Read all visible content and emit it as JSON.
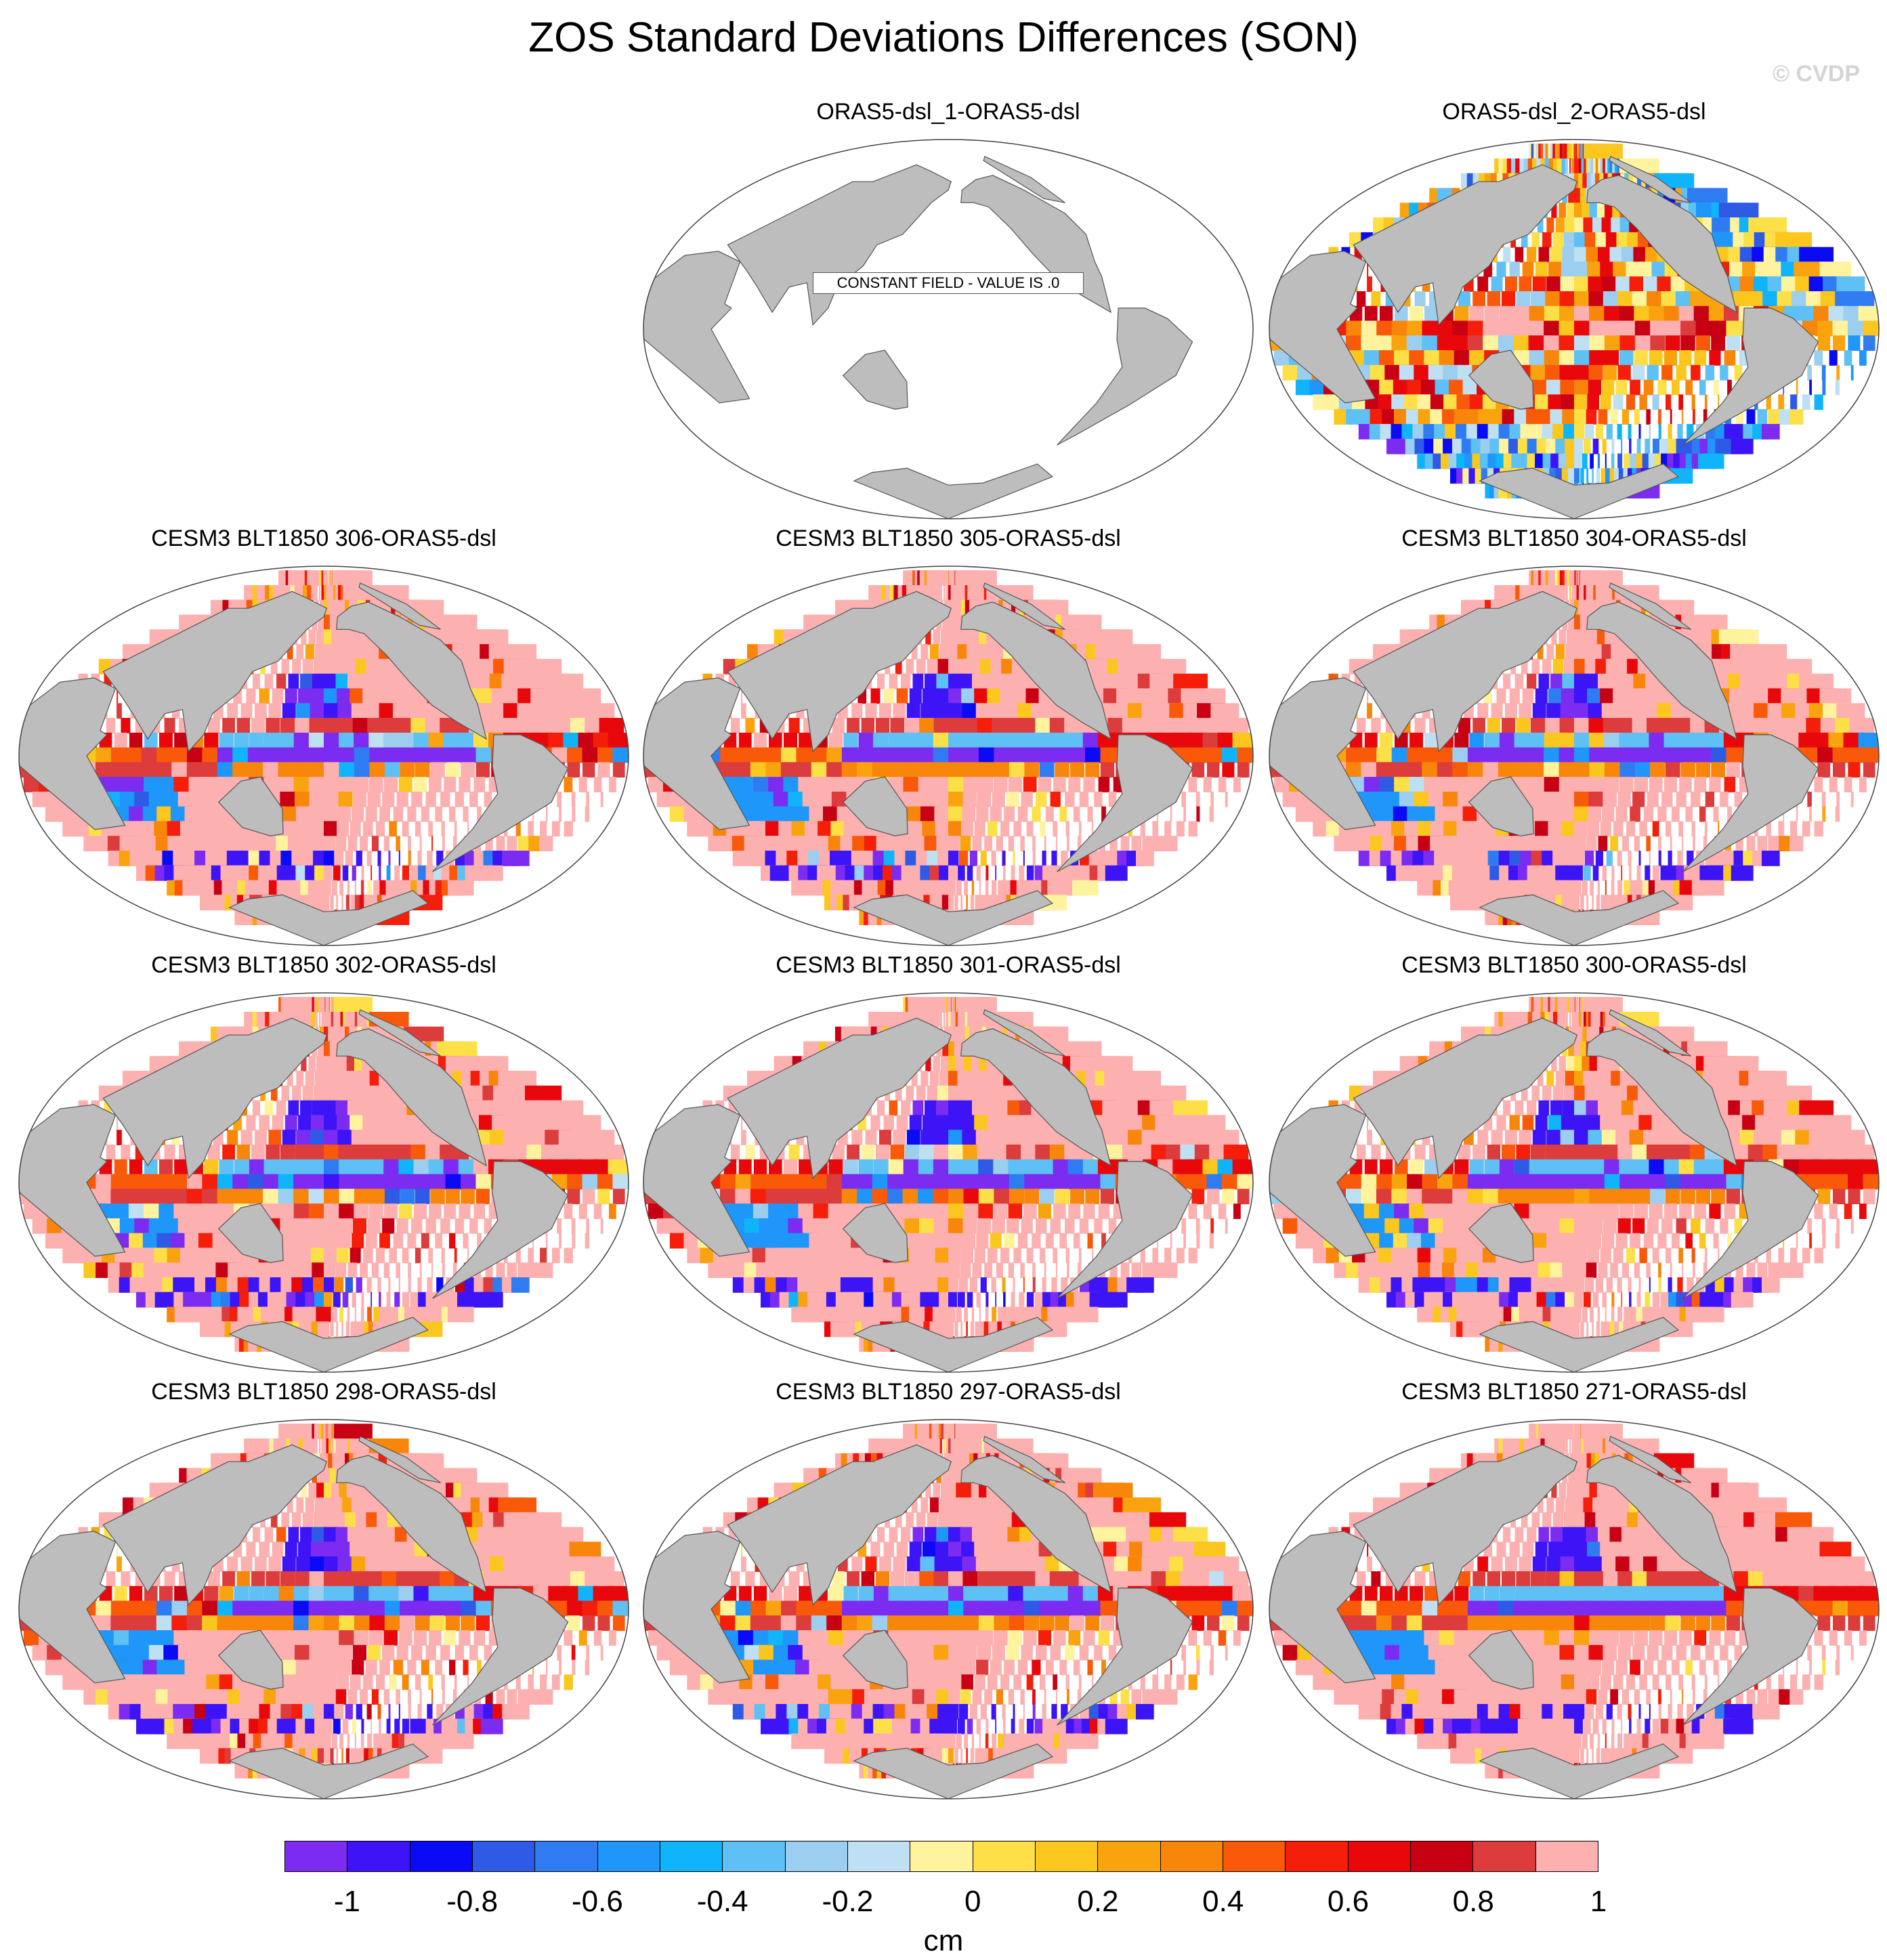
{
  "figure": {
    "title": "ZOS Standard Deviations Differences (SON)",
    "watermark": "© CVDP"
  },
  "panels": [
    {
      "title": "ORAS5-dsl_1-ORAS5-dsl",
      "constant": true,
      "constant_label": "CONSTANT FIELD - VALUE IS .0",
      "seed": 0
    },
    {
      "title": "ORAS5-dsl_2-ORAS5-dsl",
      "constant": false,
      "style": "reanalysis",
      "seed": 11
    },
    {
      "title": "CESM3 BLT1850 306-ORAS5-dsl",
      "constant": false,
      "style": "model",
      "seed": 21
    },
    {
      "title": "CESM3 BLT1850 305-ORAS5-dsl",
      "constant": false,
      "style": "model",
      "seed": 32
    },
    {
      "title": "CESM3 BLT1850 304-ORAS5-dsl",
      "constant": false,
      "style": "model",
      "seed": 43
    },
    {
      "title": "CESM3 BLT1850 302-ORAS5-dsl",
      "constant": false,
      "style": "model",
      "seed": 54
    },
    {
      "title": "CESM3 BLT1850 301-ORAS5-dsl",
      "constant": false,
      "style": "model",
      "seed": 65
    },
    {
      "title": "CESM3 BLT1850 300-ORAS5-dsl",
      "constant": false,
      "style": "model",
      "seed": 76
    },
    {
      "title": "CESM3 BLT1850 298-ORAS5-dsl",
      "constant": false,
      "style": "model",
      "seed": 87
    },
    {
      "title": "CESM3 BLT1850 297-ORAS5-dsl",
      "constant": false,
      "style": "model",
      "seed": 98
    },
    {
      "title": "CESM3 BLT1850 271-ORAS5-dsl",
      "constant": false,
      "style": "model_smooth",
      "seed": 109
    }
  ],
  "colorbar": {
    "colors": [
      "#7b2cf0",
      "#3c14f5",
      "#0a0af5",
      "#2e5ae6",
      "#2f7cf2",
      "#1f96fa",
      "#10b4fa",
      "#5ec0f4",
      "#9ccef0",
      "#bee0f2",
      "#fff39e",
      "#fde047",
      "#fbc71e",
      "#f9a40f",
      "#f8860b",
      "#f85a0a",
      "#f41e0a",
      "#e8070b",
      "#c80014",
      "#dc3c3c",
      "#fcb0b0"
    ],
    "tick_labels": [
      "-1",
      "-0.8",
      "-0.6",
      "-0.4",
      "-0.2",
      "0",
      "0.2",
      "0.4",
      "0.6",
      "0.8",
      "1"
    ],
    "units": "cm",
    "range": [
      -1,
      1
    ],
    "interval": 0.1
  },
  "map_colors": {
    "land": "#bdbdbd",
    "ocean_constant": "#ffffff",
    "coast": "#555555"
  }
}
